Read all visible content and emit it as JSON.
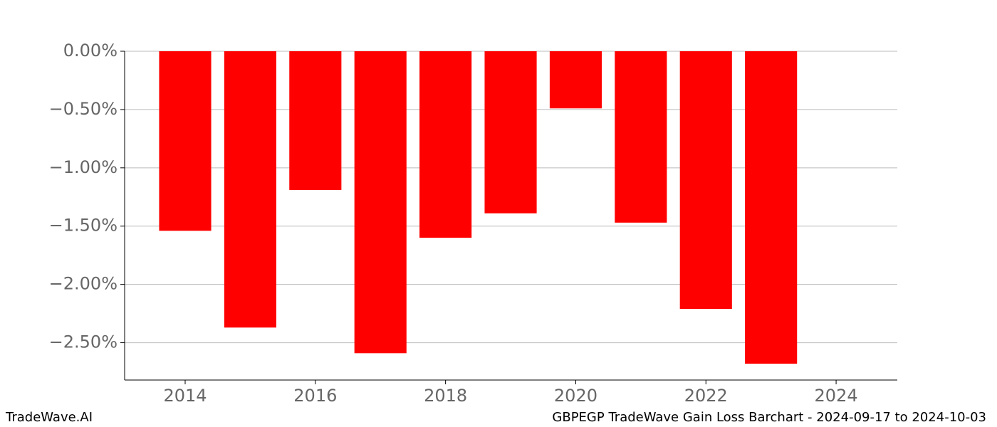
{
  "chart_data": {
    "type": "bar",
    "title": "GBPEGP TradeWave Gain Loss Barchart - 2024-09-17 to 2024-10-03",
    "source": "TradeWave.AI",
    "x": [
      2014,
      2015,
      2016,
      2017,
      2018,
      2019,
      2020,
      2021,
      2022,
      2023
    ],
    "values": [
      -1.54,
      -2.37,
      -1.19,
      -2.59,
      -1.6,
      -1.39,
      -0.49,
      -1.47,
      -2.21,
      -2.68
    ],
    "color": "#ff0000",
    "xlim": [
      2013.07,
      2024.94
    ],
    "xticks": [
      2014,
      2016,
      2018,
      2020,
      2022,
      2024
    ],
    "ylim": [
      -2.82,
      0
    ],
    "yticks": [
      {
        "value": 0,
        "label": "0.00%"
      },
      {
        "value": -0.5,
        "label": "−0.50%"
      },
      {
        "value": -1,
        "label": "−1.00%"
      },
      {
        "value": -1.5,
        "label": "−1.50%"
      },
      {
        "value": -2,
        "label": "−2.00%"
      },
      {
        "value": -2.5,
        "label": "−2.50%"
      }
    ],
    "grid": true
  }
}
